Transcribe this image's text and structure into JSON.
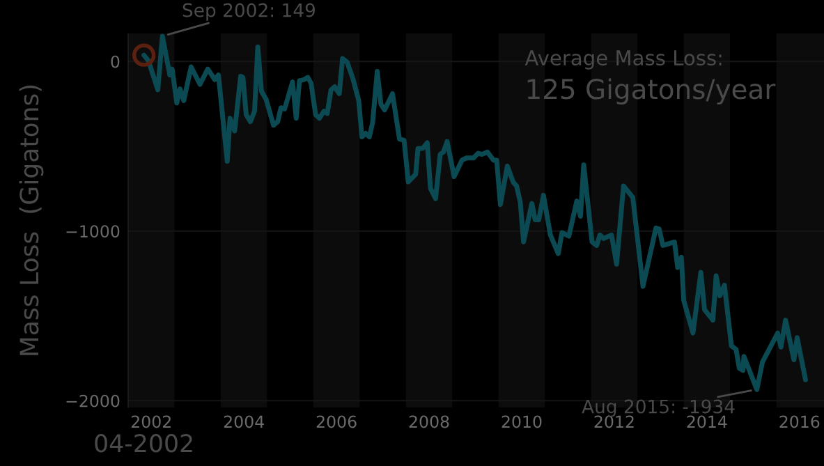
{
  "chart_data": {
    "type": "line",
    "ylabel": "Mass Loss  (Gigatons)",
    "xlim": [
      2002,
      2017.03
    ],
    "ylim": [
      -2040,
      165
    ],
    "xticks": [
      {
        "value": 2002.5,
        "label": "2002"
      },
      {
        "value": 2004.5,
        "label": "2004"
      },
      {
        "value": 2006.5,
        "label": "2006"
      },
      {
        "value": 2008.5,
        "label": "2008"
      },
      {
        "value": 2010.5,
        "label": "2010"
      },
      {
        "value": 2012.5,
        "label": "2012"
      },
      {
        "value": 2014.5,
        "label": "2014"
      },
      {
        "value": 2016.5,
        "label": "2016"
      }
    ],
    "yticks": [
      0,
      {
        "value": -1000,
        "label": "−1000"
      },
      {
        "value": -2000,
        "label": "−2000"
      }
    ],
    "grid": "y",
    "legend": false,
    "marker": "none",
    "line_style": "solid",
    "series": [
      {
        "color": "#0b4a52",
        "x": [
          2002.34,
          2002.44,
          2002.64,
          2002.74,
          2002.9,
          2002.95,
          2003.05,
          2003.12,
          2003.2,
          2003.36,
          2003.55,
          2003.72,
          2003.87,
          2003.95,
          2004.14,
          2004.2,
          2004.3,
          2004.43,
          2004.48,
          2004.55,
          2004.64,
          2004.73,
          2004.8,
          2004.88,
          2004.98,
          2005.14,
          2005.23,
          2005.3,
          2005.38,
          2005.55,
          2005.63,
          2005.7,
          2005.8,
          2005.88,
          2005.95,
          2006.05,
          2006.13,
          2006.23,
          2006.3,
          2006.38,
          2006.46,
          2006.56,
          2006.63,
          2006.73,
          2006.86,
          2006.98,
          2007.05,
          2007.13,
          2007.21,
          2007.28,
          2007.38,
          2007.46,
          2007.54,
          2007.71,
          2007.86,
          2007.96,
          2008.05,
          2008.21,
          2008.26,
          2008.36,
          2008.46,
          2008.53,
          2008.64,
          2008.74,
          2008.81,
          2008.89,
          2009.04,
          2009.21,
          2009.31,
          2009.46,
          2009.56,
          2009.64,
          2009.76,
          2009.89,
          2009.96,
          2010.04,
          2010.19,
          2010.32,
          2010.39,
          2010.47,
          2010.54,
          2010.72,
          2010.79,
          2010.87,
          2010.97,
          2011.12,
          2011.29,
          2011.37,
          2011.52,
          2011.69,
          2011.77,
          2011.84,
          2012.02,
          2012.12,
          2012.19,
          2012.27,
          2012.44,
          2012.55,
          2012.7,
          2012.9,
          2013.12,
          2013.4,
          2013.47,
          2013.55,
          2013.8,
          2013.87,
          2013.95,
          2014.0,
          2014.2,
          2014.37,
          2014.45,
          2014.63,
          2014.7,
          2014.78,
          2014.88,
          2015.03,
          2015.13,
          2015.2,
          2015.28,
          2015.3,
          2015.58,
          2015.7,
          2016.03,
          2016.1,
          2016.2,
          2016.38,
          2016.45,
          2016.63
        ],
        "values": [
          37,
          3,
          -167,
          149,
          -80,
          -45,
          -245,
          -162,
          -231,
          -32,
          -135,
          -45,
          -107,
          -80,
          -589,
          -335,
          -410,
          -87,
          -94,
          -314,
          -355,
          -293,
          85,
          -176,
          -224,
          -376,
          -355,
          -273,
          -280,
          -121,
          -335,
          -114,
          -107,
          -94,
          -128,
          -314,
          -335,
          -293,
          -307,
          -169,
          -149,
          -190,
          17,
          -4,
          -107,
          -231,
          -445,
          -424,
          -445,
          -362,
          -59,
          -252,
          -286,
          -190,
          -458,
          -465,
          -710,
          -665,
          -513,
          -513,
          -479,
          -748,
          -809,
          -548,
          -534,
          -472,
          -679,
          -582,
          -569,
          -569,
          -541,
          -548,
          -534,
          -582,
          -582,
          -844,
          -617,
          -713,
          -734,
          -830,
          -1064,
          -837,
          -933,
          -933,
          -789,
          -1023,
          -1133,
          -1009,
          -1030,
          -823,
          -913,
          -610,
          -1064,
          -1085,
          -1023,
          -1044,
          -1023,
          -1195,
          -734,
          -802,
          -1326,
          -982,
          -988,
          -1085,
          -1064,
          -1215,
          -1154,
          -1408,
          -1601,
          -1243,
          -1463,
          -1525,
          -1264,
          -1381,
          -1319,
          -1677,
          -1697,
          -1808,
          -1821,
          -1739,
          -1934,
          -1773,
          -1601,
          -1684,
          -1525,
          -1759,
          -1628,
          -1876
        ]
      }
    ],
    "bands": [
      {
        "axis": "x",
        "from": 2002,
        "to": 2003,
        "color": "#0c0c0c"
      },
      {
        "axis": "x",
        "from": 2004,
        "to": 2005,
        "color": "#0c0c0c"
      },
      {
        "axis": "x",
        "from": 2006,
        "to": 2007,
        "color": "#0c0c0c"
      },
      {
        "axis": "x",
        "from": 2008,
        "to": 2009,
        "color": "#0c0c0c"
      },
      {
        "axis": "x",
        "from": 2010,
        "to": 2011,
        "color": "#0c0c0c"
      },
      {
        "axis": "x",
        "from": 2012,
        "to": 2013,
        "color": "#0c0c0c"
      },
      {
        "axis": "x",
        "from": 2014,
        "to": 2015,
        "color": "#0c0c0c"
      },
      {
        "axis": "x",
        "from": 2016,
        "to": 2017.03,
        "color": "#0c0c0c"
      }
    ],
    "annotations": [
      {
        "text": "Sep 2002: 149",
        "x": 2002.74,
        "y": 149
      },
      {
        "text": "Aug 2015: -1934",
        "x": 2015.58,
        "y": -1934
      },
      "04-2002",
      "Average Mass Loss:",
      "125 Gigatons/year"
    ]
  }
}
